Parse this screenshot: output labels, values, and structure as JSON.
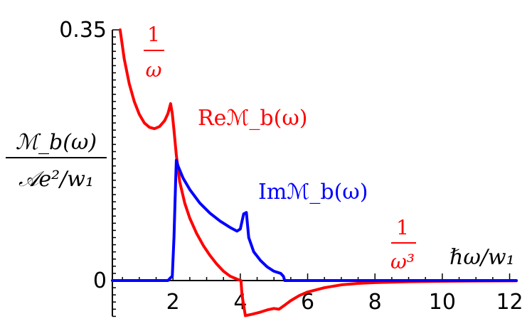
{
  "chart_data": {
    "type": "line",
    "xlabel": "ℏω/w₁",
    "ylabel": {
      "numerator": "ℳ_b(ω)",
      "denominator": "𝒜e²/w₁"
    },
    "xlim": [
      0.2,
      12.2
    ],
    "ylim": [
      -0.05,
      0.35
    ],
    "x_ticks": [
      {
        "value": 2,
        "label": "2"
      },
      {
        "value": 4,
        "label": "4"
      },
      {
        "value": 6,
        "label": "6"
      },
      {
        "value": 8,
        "label": "8"
      },
      {
        "value": 10,
        "label": "10"
      },
      {
        "value": 12,
        "label": "12"
      }
    ],
    "y_ticks": [
      {
        "value": 0,
        "label": "0"
      },
      {
        "value": 0.35,
        "label": "0.35"
      }
    ],
    "series": [
      {
        "name": "Reℳ_b(ω)",
        "color": "#ff0000",
        "points": [
          [
            0.43,
            0.35
          ],
          [
            0.55,
            0.31
          ],
          [
            0.7,
            0.275
          ],
          [
            0.85,
            0.25
          ],
          [
            1.0,
            0.232
          ],
          [
            1.15,
            0.22
          ],
          [
            1.3,
            0.214
          ],
          [
            1.45,
            0.212
          ],
          [
            1.6,
            0.215
          ],
          [
            1.75,
            0.223
          ],
          [
            1.85,
            0.233
          ],
          [
            1.93,
            0.247
          ],
          [
            1.98,
            0.233
          ],
          [
            2.03,
            0.21
          ],
          [
            2.1,
            0.175
          ],
          [
            2.2,
            0.138
          ],
          [
            2.35,
            0.108
          ],
          [
            2.5,
            0.087
          ],
          [
            2.7,
            0.066
          ],
          [
            2.9,
            0.049
          ],
          [
            3.1,
            0.035
          ],
          [
            3.3,
            0.023
          ],
          [
            3.5,
            0.013
          ],
          [
            3.7,
            0.006
          ],
          [
            3.9,
            0.002
          ],
          [
            4.02,
            0.0
          ],
          [
            4.05,
            -0.02
          ],
          [
            4.15,
            -0.049
          ],
          [
            4.35,
            -0.047
          ],
          [
            4.6,
            -0.044
          ],
          [
            4.8,
            -0.041
          ],
          [
            5.0,
            -0.039
          ],
          [
            5.15,
            -0.04
          ],
          [
            5.3,
            -0.035
          ],
          [
            5.5,
            -0.028
          ],
          [
            5.75,
            -0.021
          ],
          [
            6.0,
            -0.016
          ],
          [
            6.5,
            -0.01
          ],
          [
            7.0,
            -0.006
          ],
          [
            7.5,
            -0.004
          ],
          [
            8.0,
            -0.0028
          ],
          [
            9.0,
            -0.0016
          ],
          [
            10.0,
            -0.001
          ],
          [
            11.0,
            -0.0006
          ],
          [
            12.2,
            -0.0004
          ]
        ]
      },
      {
        "name": "Imℳ_b(ω)",
        "color": "#0000ff",
        "points": [
          [
            0.2,
            0.0
          ],
          [
            1.85,
            0.0
          ],
          [
            1.93,
            0.004
          ],
          [
            1.98,
            0.006
          ],
          [
            2.03,
            0.06
          ],
          [
            2.08,
            0.14
          ],
          [
            2.1,
            0.168
          ],
          [
            2.15,
            0.16
          ],
          [
            2.3,
            0.143
          ],
          [
            2.5,
            0.127
          ],
          [
            2.8,
            0.108
          ],
          [
            3.1,
            0.094
          ],
          [
            3.4,
            0.083
          ],
          [
            3.7,
            0.074
          ],
          [
            3.9,
            0.069
          ],
          [
            4.0,
            0.072
          ],
          [
            4.1,
            0.093
          ],
          [
            4.18,
            0.095
          ],
          [
            4.25,
            0.06
          ],
          [
            4.4,
            0.04
          ],
          [
            4.6,
            0.028
          ],
          [
            4.8,
            0.019
          ],
          [
            5.0,
            0.013
          ],
          [
            5.2,
            0.01
          ],
          [
            5.28,
            0.006
          ],
          [
            5.32,
            0.0
          ],
          [
            12.2,
            0.0
          ]
        ]
      }
    ],
    "annotations": {
      "re_label": "Reℳ_b(ω)",
      "im_label": "Imℳ_b(ω)",
      "low_freq": {
        "numerator": "1",
        "denominator": "ω"
      },
      "high_freq": {
        "numerator": "1",
        "denominator": "ω³"
      }
    },
    "grid": false,
    "legend": "none"
  },
  "colors": {
    "re": "#ff0000",
    "im": "#0000ff",
    "axis": "#000000"
  }
}
